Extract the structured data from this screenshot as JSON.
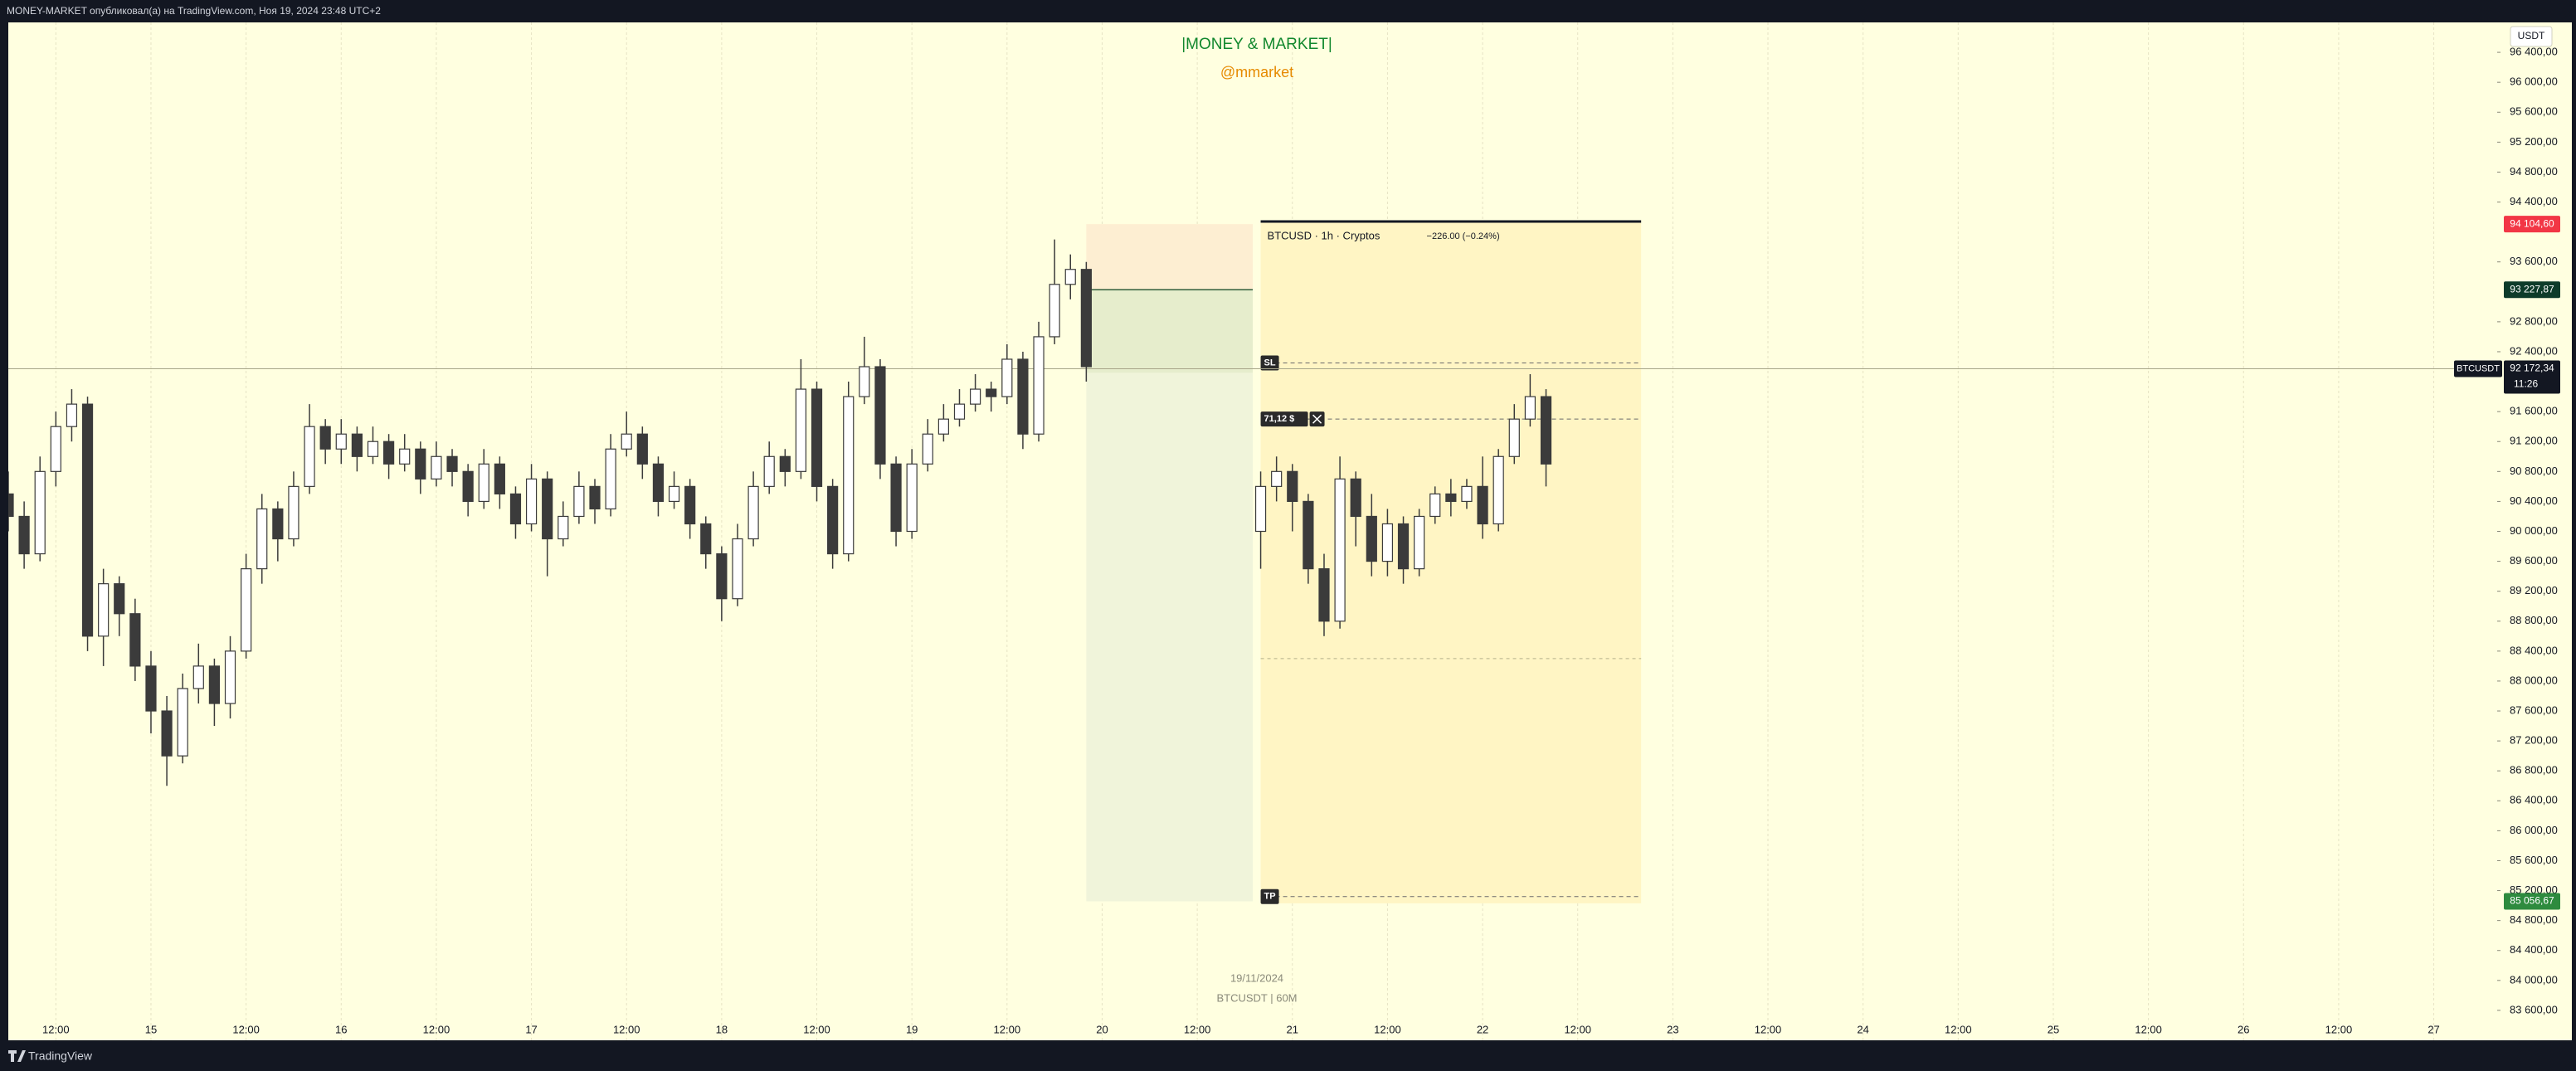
{
  "header": {
    "text": "MONEY-MARKET опубликовал(а) на TradingView.com, Ноя 19, 2024 23:48 UTC+2"
  },
  "footer": {
    "brand": "TradingView"
  },
  "chart_data": {
    "type": "candlestick",
    "title": "|MONEY & MARKET|",
    "subtitle": "@mmarket",
    "date_note": "19/11/2024",
    "symbol_note": "BTCUSDT | 60M",
    "currency": "USDT",
    "grid": "vertical",
    "xlim": [
      -18,
      296
    ],
    "ylim": [
      83200,
      96800
    ],
    "xticks": [
      {
        "value": -12,
        "label": "12:00"
      },
      {
        "value": 0,
        "label": "15"
      },
      {
        "value": 12,
        "label": "12:00"
      },
      {
        "value": 24,
        "label": "16"
      },
      {
        "value": 36,
        "label": "12:00"
      },
      {
        "value": 48,
        "label": "17"
      },
      {
        "value": 60,
        "label": "12:00"
      },
      {
        "value": 72,
        "label": "18"
      },
      {
        "value": 84,
        "label": "12:00"
      },
      {
        "value": 96,
        "label": "19"
      },
      {
        "value": 108,
        "label": "12:00"
      },
      {
        "value": 120,
        "label": "20"
      },
      {
        "value": 132,
        "label": "12:00"
      },
      {
        "value": 144,
        "label": "21"
      },
      {
        "value": 156,
        "label": "12:00"
      },
      {
        "value": 168,
        "label": "22"
      },
      {
        "value": 180,
        "label": "12:00"
      },
      {
        "value": 192,
        "label": "23"
      },
      {
        "value": 204,
        "label": "12:00"
      },
      {
        "value": 216,
        "label": "24"
      },
      {
        "value": 228,
        "label": "12:00"
      },
      {
        "value": 240,
        "label": "25"
      },
      {
        "value": 252,
        "label": "12:00"
      },
      {
        "value": 264,
        "label": "26"
      },
      {
        "value": 276,
        "label": "12:00"
      },
      {
        "value": 288,
        "label": "27"
      }
    ],
    "yticks": [
      {
        "value": 96400,
        "label": "96 400,00"
      },
      {
        "value": 96000,
        "label": "96 000,00"
      },
      {
        "value": 95600,
        "label": "95 600,00"
      },
      {
        "value": 95200,
        "label": "95 200,00"
      },
      {
        "value": 94800,
        "label": "94 800,00"
      },
      {
        "value": 94400,
        "label": "94 400,00"
      },
      {
        "value": 93600,
        "label": "93 600,00"
      },
      {
        "value": 92800,
        "label": "92 800,00"
      },
      {
        "value": 92400,
        "label": "92 400,00"
      },
      {
        "value": 91600,
        "label": "91 600,00"
      },
      {
        "value": 91200,
        "label": "91 200,00"
      },
      {
        "value": 90800,
        "label": "90 800,00"
      },
      {
        "value": 90400,
        "label": "90 400,00"
      },
      {
        "value": 90000,
        "label": "90 000,00"
      },
      {
        "value": 89600,
        "label": "89 600,00"
      },
      {
        "value": 89200,
        "label": "89 200,00"
      },
      {
        "value": 88800,
        "label": "88 800,00"
      },
      {
        "value": 88400,
        "label": "88 400,00"
      },
      {
        "value": 88000,
        "label": "88 000,00"
      },
      {
        "value": 87600,
        "label": "87 600,00"
      },
      {
        "value": 87200,
        "label": "87 200,00"
      },
      {
        "value": 86800,
        "label": "86 800,00"
      },
      {
        "value": 86400,
        "label": "86 400,00"
      },
      {
        "value": 86000,
        "label": "86 000,00"
      },
      {
        "value": 85600,
        "label": "85 600,00"
      },
      {
        "value": 85200,
        "label": "85 200,00"
      },
      {
        "value": 84800,
        "label": "84 800,00"
      },
      {
        "value": 84400,
        "label": "84 400,00"
      },
      {
        "value": 84000,
        "label": "84 000,00"
      },
      {
        "value": 83600,
        "label": "83 600,00"
      }
    ],
    "series": [
      {
        "name": "BTCUSDT",
        "color": "#3b3b3b",
        "x": [
          -18,
          -16,
          -14,
          -12,
          -10,
          -8,
          -6,
          -4,
          -2,
          0,
          2,
          4,
          6,
          8,
          10,
          12,
          14,
          16,
          18,
          20,
          22,
          24,
          26,
          28,
          30,
          32,
          34,
          36,
          38,
          40,
          42,
          44,
          46,
          48,
          50,
          52,
          54,
          56,
          58,
          60,
          62,
          64,
          66,
          68,
          70,
          72,
          74,
          76,
          78,
          80,
          82,
          84,
          86,
          88,
          90,
          92,
          94,
          96,
          98,
          100,
          102,
          104,
          106,
          108,
          110,
          112,
          114,
          116,
          118
        ],
        "ohlc": [
          [
            90500,
            90800,
            90000,
            90200
          ],
          [
            90200,
            90400,
            89500,
            89700
          ],
          [
            89700,
            91000,
            89600,
            90800
          ],
          [
            90800,
            91600,
            90600,
            91400
          ],
          [
            91400,
            91900,
            91200,
            91700
          ],
          [
            91700,
            91800,
            88400,
            88600
          ],
          [
            88600,
            89500,
            88200,
            89300
          ],
          [
            89300,
            89400,
            88600,
            88900
          ],
          [
            88900,
            89100,
            88000,
            88200
          ],
          [
            88200,
            88400,
            87300,
            87600
          ],
          [
            87600,
            87800,
            86600,
            87000
          ],
          [
            87000,
            88100,
            86900,
            87900
          ],
          [
            87900,
            88500,
            87700,
            88200
          ],
          [
            88200,
            88300,
            87400,
            87700
          ],
          [
            87700,
            88600,
            87500,
            88400
          ],
          [
            88400,
            89700,
            88300,
            89500
          ],
          [
            89500,
            90500,
            89300,
            90300
          ],
          [
            90300,
            90400,
            89600,
            89900
          ],
          [
            89900,
            90800,
            89800,
            90600
          ],
          [
            90600,
            91700,
            90500,
            91400
          ],
          [
            91400,
            91500,
            90900,
            91100
          ],
          [
            91100,
            91500,
            90900,
            91300
          ],
          [
            91300,
            91400,
            90800,
            91000
          ],
          [
            91000,
            91400,
            90900,
            91200
          ],
          [
            91200,
            91300,
            90700,
            90900
          ],
          [
            90900,
            91300,
            90800,
            91100
          ],
          [
            91100,
            91200,
            90500,
            90700
          ],
          [
            90700,
            91200,
            90600,
            91000
          ],
          [
            91000,
            91100,
            90600,
            90800
          ],
          [
            90800,
            90900,
            90200,
            90400
          ],
          [
            90400,
            91100,
            90300,
            90900
          ],
          [
            90900,
            91000,
            90300,
            90500
          ],
          [
            90500,
            90600,
            89900,
            90100
          ],
          [
            90100,
            90900,
            90000,
            90700
          ],
          [
            90700,
            90800,
            89400,
            89900
          ],
          [
            89900,
            90400,
            89800,
            90200
          ],
          [
            90200,
            90800,
            90100,
            90600
          ],
          [
            90600,
            90700,
            90100,
            90300
          ],
          [
            90300,
            91300,
            90200,
            91100
          ],
          [
            91100,
            91600,
            91000,
            91300
          ],
          [
            91300,
            91400,
            90700,
            90900
          ],
          [
            90900,
            91000,
            90200,
            90400
          ],
          [
            90400,
            90800,
            90300,
            90600
          ],
          [
            90600,
            90700,
            89900,
            90100
          ],
          [
            90100,
            90200,
            89500,
            89700
          ],
          [
            89700,
            89800,
            88800,
            89100
          ],
          [
            89100,
            90100,
            89000,
            89900
          ],
          [
            89900,
            90800,
            89800,
            90600
          ],
          [
            90600,
            91200,
            90500,
            91000
          ],
          [
            91000,
            91100,
            90600,
            90800
          ],
          [
            90800,
            92300,
            90700,
            91900
          ],
          [
            91900,
            92000,
            90400,
            90600
          ],
          [
            90600,
            90700,
            89500,
            89700
          ],
          [
            89700,
            92000,
            89600,
            91800
          ],
          [
            91800,
            92600,
            91700,
            92200
          ],
          [
            92200,
            92300,
            90700,
            90900
          ],
          [
            90900,
            91000,
            89800,
            90000
          ],
          [
            90000,
            91100,
            89900,
            90900
          ],
          [
            90900,
            91500,
            90800,
            91300
          ],
          [
            91300,
            91700,
            91200,
            91500
          ],
          [
            91500,
            91900,
            91400,
            91700
          ],
          [
            91700,
            92100,
            91600,
            91900
          ],
          [
            91900,
            92000,
            91600,
            91800
          ],
          [
            91800,
            92500,
            91700,
            92300
          ],
          [
            92300,
            92400,
            91100,
            91300
          ],
          [
            91300,
            92800,
            91200,
            92600
          ],
          [
            92600,
            93900,
            92500,
            93300
          ],
          [
            93300,
            93700,
            93100,
            93500
          ],
          [
            93500,
            93600,
            92000,
            92200
          ]
        ]
      },
      {
        "color": "#3b3b3b",
        "x": [
          140,
          142,
          144,
          146,
          148,
          150,
          152,
          154,
          156,
          158,
          160,
          162,
          164,
          166,
          168,
          170,
          172,
          174,
          176
        ],
        "ohlc": [
          [
            90000,
            90800,
            89500,
            90600
          ],
          [
            90600,
            91000,
            90400,
            90800
          ],
          [
            90800,
            90900,
            90000,
            90400
          ],
          [
            90400,
            90500,
            89300,
            89500
          ],
          [
            89500,
            89700,
            88600,
            88800
          ],
          [
            88800,
            91000,
            88700,
            90700
          ],
          [
            90700,
            90800,
            89800,
            90200
          ],
          [
            90200,
            90500,
            89400,
            89600
          ],
          [
            89600,
            90300,
            89400,
            90100
          ],
          [
            90100,
            90200,
            89300,
            89500
          ],
          [
            89500,
            90300,
            89400,
            90200
          ],
          [
            90200,
            90600,
            90100,
            90500
          ],
          [
            90500,
            90700,
            90200,
            90400
          ],
          [
            90400,
            90700,
            90300,
            90600
          ],
          [
            90600,
            91000,
            89900,
            90100
          ],
          [
            90100,
            91100,
            90000,
            91000
          ],
          [
            91000,
            91700,
            90900,
            91500
          ],
          [
            91500,
            92100,
            91400,
            91800
          ],
          [
            91800,
            91900,
            90600,
            90900
          ]
        ]
      }
    ],
    "position": {
      "start": 118,
      "end": 139,
      "stop": 94104.6,
      "entry": 93227.87,
      "target": 85056.67
    },
    "badges": [
      {
        "value": 94104.6,
        "label": "94 104,60",
        "color": "#f23645"
      },
      {
        "value": 93227.87,
        "label": "93 227,87",
        "color": "#0d3b2a"
      },
      {
        "value": 85056.67,
        "label": "85 056,67",
        "color": "#2e8b3e"
      }
    ],
    "last_price": {
      "value": 92172.34,
      "label": "92 172,34",
      "countdown": "11:26",
      "color": "#131722"
    },
    "inset": {
      "title": "BTCUSD · 1h · Cryptos",
      "change": "−226.00 (−0.24%)",
      "xrange": [
        140,
        188
      ],
      "top": 94140,
      "bottom": 85030,
      "levels": [
        {
          "label": "SL",
          "value": 92250
        },
        {
          "label": "71,12 $",
          "value": 91500
        },
        {
          "label": "TP",
          "value": 85120
        }
      ],
      "midline": 88300
    }
  }
}
